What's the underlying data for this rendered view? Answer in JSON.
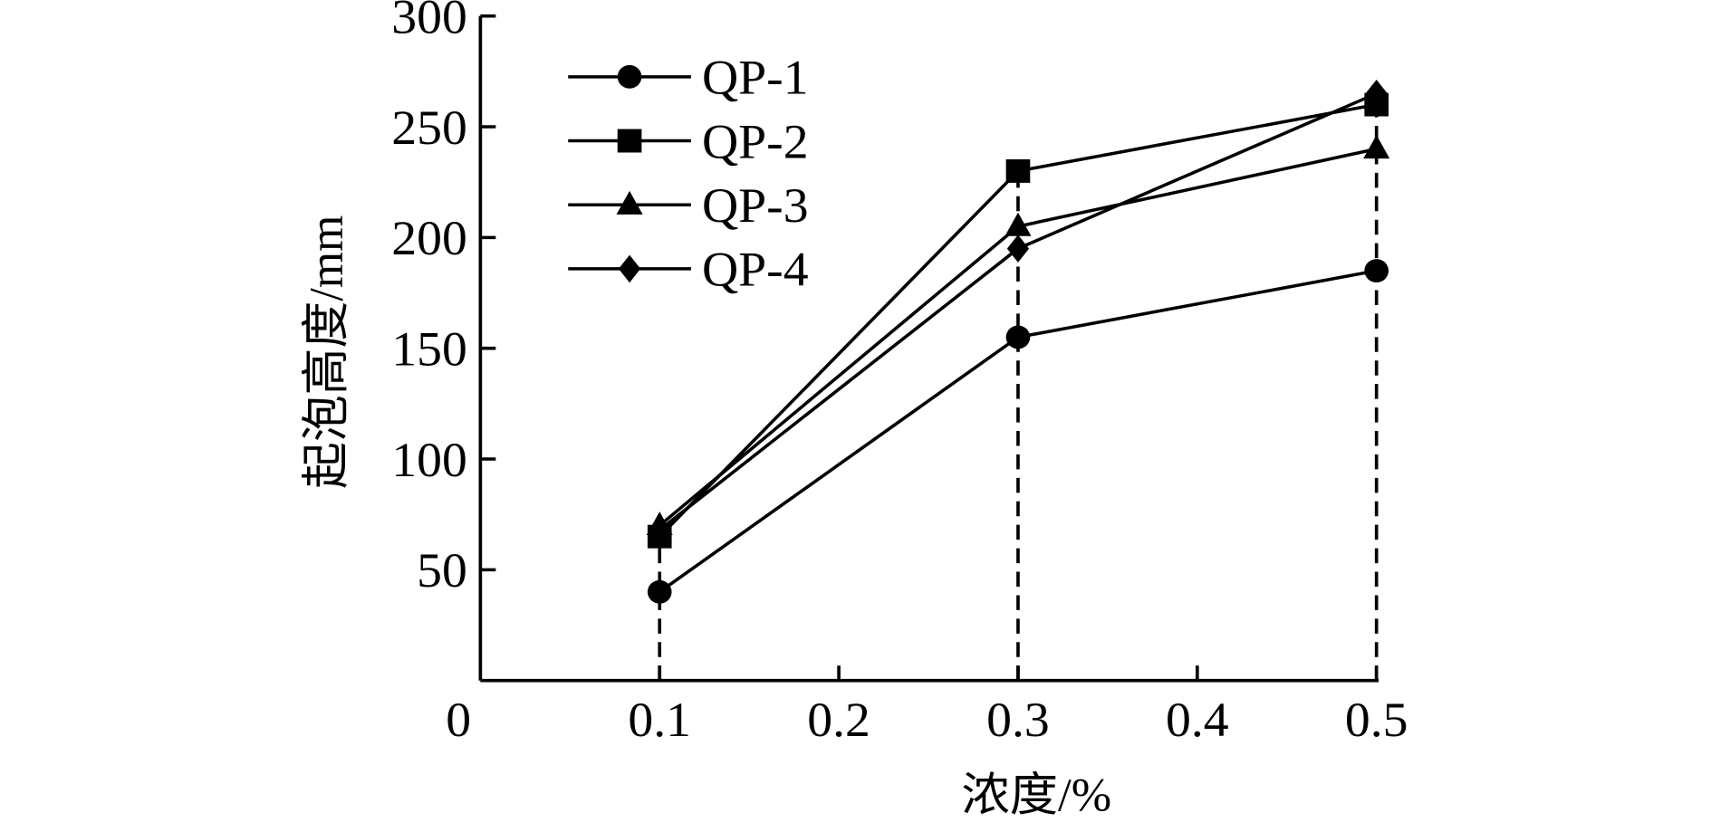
{
  "chart_data": {
    "type": "line",
    "xlabel": "浓度/%",
    "ylabel": "起泡高度/mm",
    "x": [
      0.1,
      0.3,
      0.5
    ],
    "xlim": [
      0,
      0.5
    ],
    "ylim": [
      0,
      300
    ],
    "xticks": [
      "0",
      "0.1",
      "0.2",
      "0.3",
      "0.4",
      "0.5"
    ],
    "xtick_values": [
      0,
      0.1,
      0.2,
      0.3,
      0.4,
      0.5
    ],
    "yticks": [
      "50",
      "100",
      "150",
      "200",
      "250",
      "300"
    ],
    "ytick_values": [
      50,
      100,
      150,
      200,
      250,
      300
    ],
    "grid": false,
    "legend_position": "top-left",
    "drop_lines": "dashed vertical lines at each x value",
    "series": [
      {
        "name": "QP-1",
        "marker": "circle",
        "values": [
          40,
          155,
          185
        ]
      },
      {
        "name": "QP-2",
        "marker": "square",
        "values": [
          65,
          230,
          260
        ]
      },
      {
        "name": "QP-3",
        "marker": "triangle",
        "values": [
          70,
          205,
          240
        ]
      },
      {
        "name": "QP-4",
        "marker": "diamond",
        "values": [
          68,
          195,
          265
        ]
      }
    ],
    "color": "#000000"
  }
}
